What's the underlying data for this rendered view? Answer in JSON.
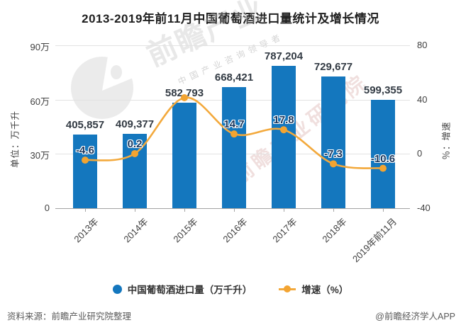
{
  "title": "2013-2019年前11月中国葡萄酒进口量统计及增长情况",
  "chart_data": {
    "type": "combo_bar_line",
    "categories": [
      "2013年",
      "2014年",
      "2015年",
      "2016年",
      "2017年",
      "2018年",
      "2019年前11月"
    ],
    "series": [
      {
        "name": "中国葡萄酒进口量（万千升）",
        "type": "bar",
        "values": [
          405857,
          409377,
          582793,
          668421,
          787204,
          729677,
          599355
        ],
        "labels": [
          "405,857",
          "409,377",
          "582,793",
          "668,421",
          "787,204",
          "729,677",
          "599,355"
        ]
      },
      {
        "name": "增速（%）",
        "type": "line",
        "values": [
          -4.6,
          0.2,
          41.4,
          14.7,
          17.8,
          -7.3,
          -10.6
        ],
        "labels": [
          "-4.6",
          "0.2",
          "",
          "14.7",
          "17.8",
          "-7.3",
          "-10.6"
        ]
      }
    ],
    "left_axis": {
      "title": "单位：万千升",
      "ticks": [
        "90万",
        "60万",
        "30万",
        "0"
      ],
      "range": [
        0,
        900000
      ]
    },
    "right_axis": {
      "title": "％：增速",
      "ticks": [
        "80",
        "40",
        "0",
        "-40"
      ],
      "range": [
        -40,
        80
      ]
    },
    "grid": true,
    "legend_position": "bottom",
    "x_label_rotation": -45
  },
  "legend": {
    "bar_label": "中国葡萄酒进口量（万千升）",
    "line_label": "增速（%）"
  },
  "footer": {
    "source": "资料来源：前瞻产业研究院整理",
    "credit": "@前瞻经济学人APP"
  },
  "watermarks": {
    "brand": "前瞻产业",
    "tagline": "中国产业咨询领导者",
    "diagonal": "前瞻产业研究院"
  },
  "colors": {
    "bar": "#1477be",
    "line": "#f3a93c",
    "marker": "#f3a431",
    "bar_value_label": "#333b44",
    "growth_value_label": "#1d3a60",
    "axis_text": "#404040",
    "gridline": "#e2e2e2",
    "axis_line": "#a3a3a3",
    "title_text": "#1f1f1f",
    "footer_text": "#595959"
  }
}
